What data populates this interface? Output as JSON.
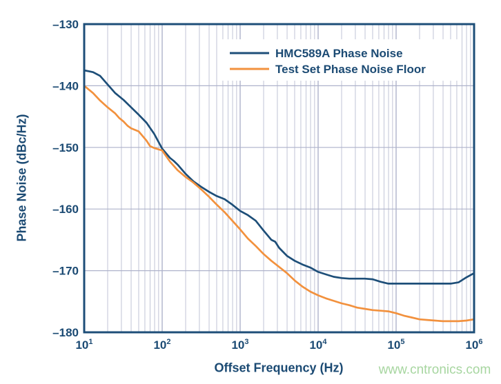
{
  "watermark": "www.cntronics.com",
  "colors": {
    "series_hmc589a": "#1d4e78",
    "series_test_set": "#f2913d",
    "frame": "#1d4e78",
    "grid_minor": "#c6c9d9",
    "grid_major": "#aeb2ca",
    "text": "#1b4a73",
    "legend_background": "#ffffff",
    "watermark": "#a7d6a0",
    "background": "#ffffff"
  },
  "chart_data": {
    "type": "line",
    "title": "",
    "xlabel": "Offset Frequency (Hz)",
    "ylabel": "Phase Noise (dBc/Hz)",
    "x_scale": "log",
    "xlim": [
      10,
      1000000
    ],
    "ylim": [
      -180,
      -130
    ],
    "grid": "major-y, major+minor-x (log decades)",
    "legend_position": "top-right-inside",
    "x_ticks": [
      {
        "base": "10",
        "exp": "1",
        "value": 10
      },
      {
        "base": "10",
        "exp": "2",
        "value": 100
      },
      {
        "base": "10",
        "exp": "3",
        "value": 1000
      },
      {
        "base": "10",
        "exp": "4",
        "value": 10000
      },
      {
        "base": "10",
        "exp": "5",
        "value": 100000
      },
      {
        "base": "10",
        "exp": "6",
        "value": 1000000
      }
    ],
    "y_ticks": [
      {
        "label": "–130",
        "value": -130
      },
      {
        "label": "–140",
        "value": -140
      },
      {
        "label": "–150",
        "value": -150
      },
      {
        "label": "–160",
        "value": -160
      },
      {
        "label": "–170",
        "value": -170
      },
      {
        "label": "–180",
        "value": -180
      }
    ],
    "series": [
      {
        "name": "HMC589A Phase Noise",
        "color": "#1d4e78",
        "points": [
          [
            10,
            -137.5
          ],
          [
            13,
            -137.8
          ],
          [
            16,
            -138.4
          ],
          [
            20,
            -139.8
          ],
          [
            25,
            -141.2
          ],
          [
            32,
            -142.3
          ],
          [
            40,
            -143.5
          ],
          [
            50,
            -144.7
          ],
          [
            63,
            -146.0
          ],
          [
            79,
            -147.8
          ],
          [
            100,
            -150.2
          ],
          [
            126,
            -151.7
          ],
          [
            141,
            -152.2
          ],
          [
            158,
            -152.8
          ],
          [
            200,
            -154.3
          ],
          [
            251,
            -155.5
          ],
          [
            316,
            -156.4
          ],
          [
            398,
            -157.2
          ],
          [
            501,
            -157.9
          ],
          [
            631,
            -158.4
          ],
          [
            794,
            -159.3
          ],
          [
            1000,
            -160.3
          ],
          [
            1259,
            -161.0
          ],
          [
            1585,
            -161.9
          ],
          [
            2000,
            -163.5
          ],
          [
            2512,
            -165.0
          ],
          [
            2818,
            -165.3
          ],
          [
            3162,
            -166.3
          ],
          [
            3981,
            -167.6
          ],
          [
            5012,
            -168.4
          ],
          [
            6310,
            -169.0
          ],
          [
            7943,
            -169.5
          ],
          [
            10000,
            -170.2
          ],
          [
            12589,
            -170.6
          ],
          [
            15849,
            -171.0
          ],
          [
            20000,
            -171.2
          ],
          [
            25119,
            -171.3
          ],
          [
            31623,
            -171.3
          ],
          [
            39811,
            -171.3
          ],
          [
            50119,
            -171.4
          ],
          [
            63096,
            -171.8
          ],
          [
            79433,
            -172.1
          ],
          [
            100000,
            -172.1
          ],
          [
            158489,
            -172.1
          ],
          [
            251189,
            -172.1
          ],
          [
            398107,
            -172.1
          ],
          [
            501187,
            -172.1
          ],
          [
            630957,
            -171.9
          ],
          [
            794328,
            -171.1
          ],
          [
            1000000,
            -170.4
          ]
        ]
      },
      {
        "name": "Test Set Phase Noise Floor",
        "color": "#f2913d",
        "points": [
          [
            10,
            -140.0
          ],
          [
            13,
            -141.2
          ],
          [
            16,
            -142.4
          ],
          [
            20,
            -143.5
          ],
          [
            25,
            -144.5
          ],
          [
            28,
            -145.2
          ],
          [
            32,
            -145.8
          ],
          [
            36,
            -146.5
          ],
          [
            40,
            -146.9
          ],
          [
            50,
            -147.4
          ],
          [
            63,
            -148.9
          ],
          [
            70,
            -149.8
          ],
          [
            79,
            -150.1
          ],
          [
            89,
            -150.3
          ],
          [
            100,
            -150.5
          ],
          [
            126,
            -152.3
          ],
          [
            158,
            -153.7
          ],
          [
            200,
            -154.8
          ],
          [
            251,
            -155.7
          ],
          [
            316,
            -156.8
          ],
          [
            398,
            -158.0
          ],
          [
            501,
            -159.3
          ],
          [
            631,
            -160.5
          ],
          [
            794,
            -161.9
          ],
          [
            1000,
            -163.3
          ],
          [
            1259,
            -164.8
          ],
          [
            1585,
            -166.0
          ],
          [
            2000,
            -167.3
          ],
          [
            2512,
            -168.4
          ],
          [
            3162,
            -169.4
          ],
          [
            3981,
            -170.4
          ],
          [
            5012,
            -171.6
          ],
          [
            6310,
            -172.6
          ],
          [
            7943,
            -173.4
          ],
          [
            10000,
            -174.0
          ],
          [
            12589,
            -174.5
          ],
          [
            15849,
            -174.9
          ],
          [
            20000,
            -175.3
          ],
          [
            25119,
            -175.6
          ],
          [
            31623,
            -176.0
          ],
          [
            39811,
            -176.2
          ],
          [
            50119,
            -176.4
          ],
          [
            63096,
            -176.5
          ],
          [
            79433,
            -176.6
          ],
          [
            100000,
            -176.9
          ],
          [
            125893,
            -177.3
          ],
          [
            158489,
            -177.6
          ],
          [
            199526,
            -177.9
          ],
          [
            251189,
            -178.0
          ],
          [
            316228,
            -178.1
          ],
          [
            398107,
            -178.2
          ],
          [
            501187,
            -178.2
          ],
          [
            630957,
            -178.2
          ],
          [
            794328,
            -178.1
          ],
          [
            1000000,
            -177.9
          ]
        ]
      }
    ]
  }
}
